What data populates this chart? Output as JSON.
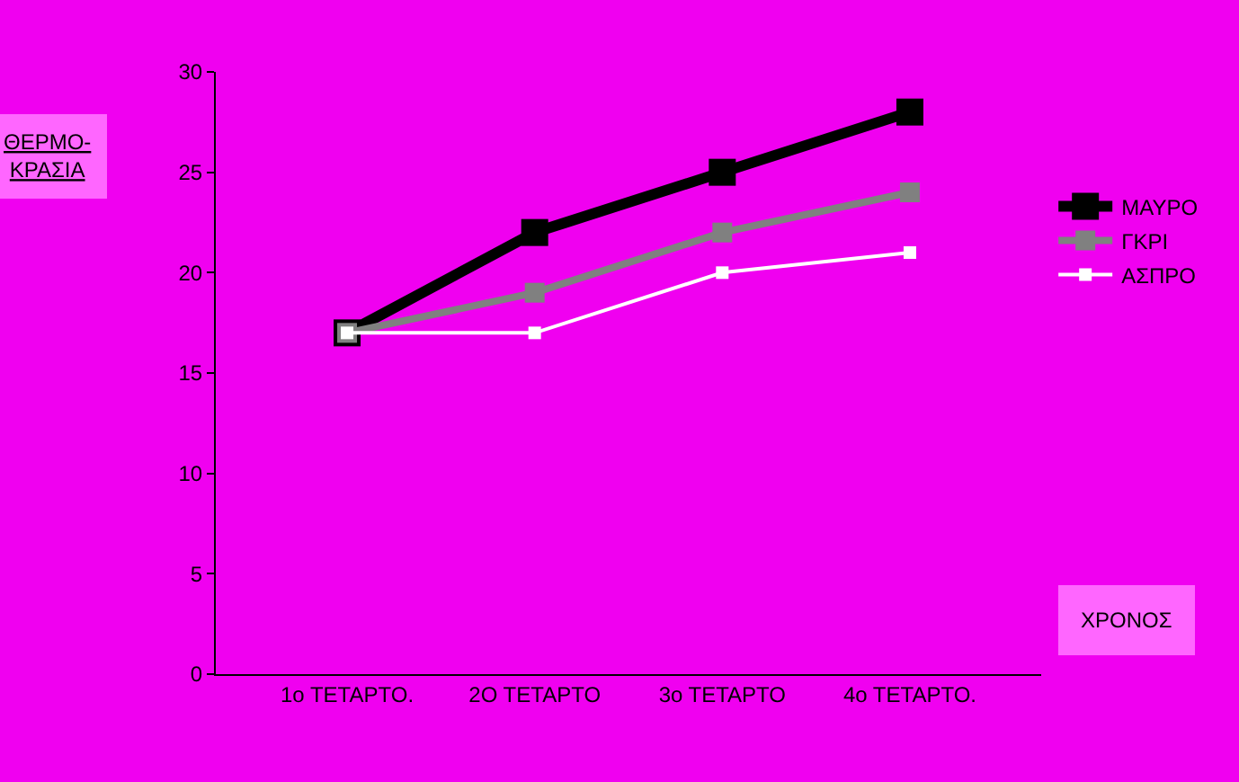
{
  "chart_data": {
    "type": "line",
    "ylabel": "ΘΕΡΜΟ-ΚΡΑΣΙΑ",
    "xlabel": "ΧΡΟΝΟΣ",
    "categories": [
      "1ο ΤΕΤΑΡΤΟ.",
      "2Ο ΤΕΤΑΡΤΟ",
      "3ο ΤΕΤΑΡΤΟ",
      "4ο ΤΕΤΑΡΤΟ."
    ],
    "series": [
      {
        "name": "ΜΑΥΡΟ",
        "color": "#000000",
        "values": [
          17,
          22,
          25,
          28
        ]
      },
      {
        "name": "ΓΚΡΙ",
        "color": "#808080",
        "values": [
          17,
          19,
          22,
          24
        ]
      },
      {
        "name": "ΑΣΠΡΟ",
        "color": "#ffffff",
        "values": [
          17,
          17,
          20,
          21
        ]
      }
    ],
    "ylim": [
      0,
      30
    ],
    "yticks": [
      0,
      5,
      10,
      15,
      20,
      25,
      30
    ],
    "grid": false,
    "legend": "right",
    "marker": "square",
    "line_style": "solid"
  }
}
